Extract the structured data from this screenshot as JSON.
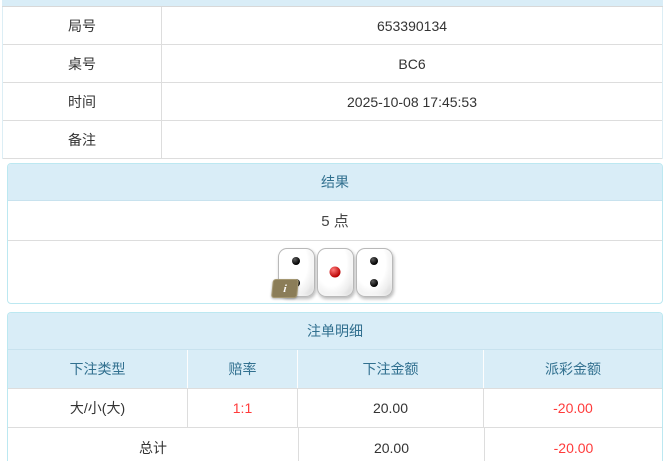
{
  "info_table": {
    "rows": [
      {
        "label": "局号",
        "value": "653390134"
      },
      {
        "label": "桌号",
        "value": "BC6"
      },
      {
        "label": "时间",
        "value": "2025-10-08 17:45:53"
      },
      {
        "label": "备注",
        "value": ""
      }
    ]
  },
  "result_panel": {
    "title": "结果",
    "points": "5 点",
    "dice": [
      2,
      1,
      2
    ],
    "info_badge_label": "i"
  },
  "bets_panel": {
    "title": "注单明细",
    "headers": {
      "type": "下注类型",
      "odds": "赔率",
      "bet": "下注金额",
      "payout": "派彩金额"
    },
    "rows": [
      {
        "type": "大/小(大)",
        "odds": "1:1",
        "bet": "20.00",
        "payout": "-20.00"
      }
    ],
    "total": {
      "label": "总计",
      "bet": "20.00",
      "payout": "-20.00"
    }
  },
  "colors": {
    "heading_background": "#d9edf7",
    "heading_text": "#31708f",
    "panel_border": "#bce8f1",
    "row_border": "#dddddd",
    "negative_amount": "#ff3b3b",
    "die_pip_black": "#000000",
    "die_pip_red": "#b80000"
  }
}
